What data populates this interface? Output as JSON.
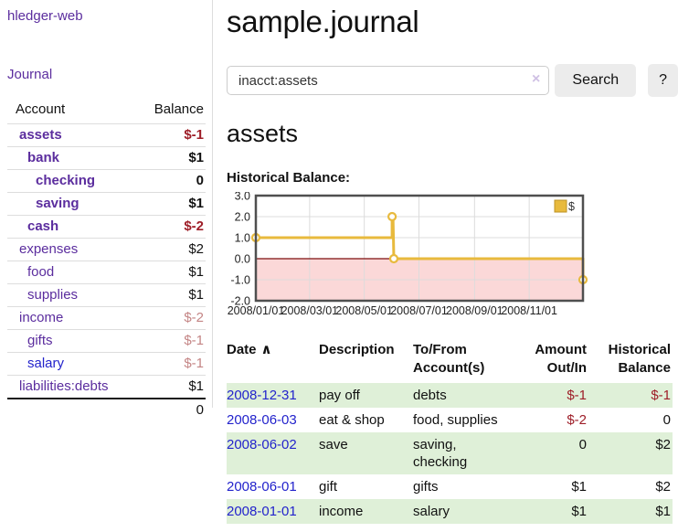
{
  "colors": {
    "purple": "#5b2d9e",
    "blue": "#2323cc",
    "darkred": "#9e1e28",
    "rose": "#c48585",
    "rowgreen": "#dff0d8",
    "gold": "#e8ba3d",
    "goldborder": "#bd9326",
    "pink": "#fbd8d8",
    "zeroline": "#7d0e0e",
    "grid": "#dcdcdc",
    "chartborder": "#4f4f4f",
    "buttonbg": "#ececec",
    "inputborder": "#ccc"
  },
  "sidebar": {
    "app_title": "hledger-web",
    "journal_label": "Journal",
    "accounts_header": {
      "account": "Account",
      "balance": "Balance"
    },
    "accounts": [
      {
        "name": "assets",
        "indent": 0,
        "bold": true,
        "balance": "$-1"
      },
      {
        "name": "bank",
        "indent": 1,
        "bold": true,
        "balance": "$1"
      },
      {
        "name": "checking",
        "indent": 2,
        "bold": true,
        "balance": "0"
      },
      {
        "name": "saving",
        "indent": 2,
        "bold": true,
        "balance": "$1"
      },
      {
        "name": "cash",
        "indent": 1,
        "bold": true,
        "balance": "$-2"
      },
      {
        "name": "expenses",
        "indent": 0,
        "bold": false,
        "balance": "$2"
      },
      {
        "name": "food",
        "indent": 1,
        "bold": false,
        "balance": "$1"
      },
      {
        "name": "supplies",
        "indent": 1,
        "bold": false,
        "balance": "$1"
      },
      {
        "name": "income",
        "indent": 0,
        "bold": false,
        "balance": "$-2"
      },
      {
        "name": "gifts",
        "indent": 1,
        "bold": false,
        "balance": "$-1"
      },
      {
        "name": "salary",
        "indent": 1,
        "bold": false,
        "balance": "$-1",
        "link_color": "blue"
      },
      {
        "name": "liabilities:debts",
        "indent": 0,
        "bold": false,
        "balance": "$1"
      }
    ],
    "total": "0"
  },
  "header": {
    "title": "sample.journal"
  },
  "search": {
    "value": "inacct:assets",
    "clear_icon": "×",
    "search_button": "Search",
    "help_button": "?"
  },
  "account_page": {
    "title": "assets"
  },
  "chart_data": {
    "type": "line",
    "title": "Historical Balance:",
    "legend": [
      "$"
    ],
    "ylim": [
      -2,
      3
    ],
    "y_ticks": [
      {
        "v": 3,
        "label": "3.0"
      },
      {
        "v": 2,
        "label": "2.0"
      },
      {
        "v": 1,
        "label": "1.0"
      },
      {
        "v": 0,
        "label": "0.0"
      },
      {
        "v": -1,
        "label": "-1.0"
      },
      {
        "v": -2,
        "label": "-2.0"
      }
    ],
    "x_range": [
      "2008-01-01",
      "2008-12-31"
    ],
    "x_ticks": [
      {
        "d": "2008-01-01",
        "label": "2008/01/01"
      },
      {
        "d": "2008-03-01",
        "label": "2008/03/01"
      },
      {
        "d": "2008-05-01",
        "label": "2008/05/01"
      },
      {
        "d": "2008-07-01",
        "label": "2008/07/01"
      },
      {
        "d": "2008-09-01",
        "label": "2008/09/01"
      },
      {
        "d": "2008-11-01",
        "label": "2008/11/01"
      }
    ],
    "line_points": [
      [
        "2008-01-01",
        1
      ],
      [
        "2008-06-01",
        1
      ],
      [
        "2008-06-01",
        2
      ],
      [
        "2008-06-02",
        2
      ],
      [
        "2008-06-03",
        0
      ],
      [
        "2008-12-31",
        0
      ],
      [
        "2008-12-31",
        -1
      ]
    ],
    "markers": [
      [
        "2008-01-01",
        1
      ],
      [
        "2008-06-01",
        2
      ],
      [
        "2008-06-03",
        0
      ],
      [
        "2008-12-31",
        -1
      ]
    ],
    "negative_region": true,
    "zero_line": true,
    "grid": true,
    "legend_position": "top-right"
  },
  "register": {
    "sort_icon": "∧",
    "headers": {
      "date": "Date",
      "description": "Description",
      "tofrom1": "To/From",
      "tofrom2": "Account(s)",
      "amount1": "Amount",
      "amount2": "Out/In",
      "hist1": "Historical",
      "hist2": "Balance"
    },
    "rows": [
      {
        "date": "2008-12-31",
        "description": "pay off",
        "accounts": "debts",
        "amount": "$-1",
        "balance": "$-1"
      },
      {
        "date": "2008-06-03",
        "description": "eat & shop",
        "accounts": "food, supplies",
        "amount": "$-2",
        "balance": "0"
      },
      {
        "date": "2008-06-02",
        "description": "save",
        "accounts": "saving, checking",
        "amount": "0",
        "balance": "$2"
      },
      {
        "date": "2008-06-01",
        "description": "gift",
        "accounts": "gifts",
        "amount": "$1",
        "balance": "$2"
      },
      {
        "date": "2008-01-01",
        "description": "income",
        "accounts": "salary",
        "amount": "$1",
        "balance": "$1"
      }
    ]
  }
}
